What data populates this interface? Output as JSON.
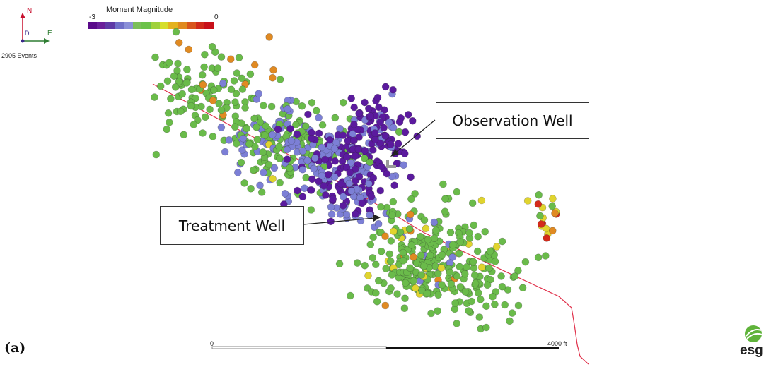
{
  "compass": {
    "north": "N",
    "east": "E",
    "down": "D"
  },
  "events_label": "2905 Events",
  "color_scale": {
    "title": "Moment Magnitude",
    "min_label": "-3",
    "max_label": "0",
    "colors": [
      "#5a0a8a",
      "#6a1f9a",
      "#5e3aa6",
      "#6f6fc8",
      "#8a8fd8",
      "#7bbf5a",
      "#6cc24a",
      "#9fd13c",
      "#d6de2a",
      "#e4b21e",
      "#e08a1e",
      "#d8551c",
      "#d02a1a",
      "#c8101a"
    ]
  },
  "callouts": {
    "observation": "Observation Well",
    "treatment": "Treatment Well"
  },
  "panel_label": "(a)",
  "scale_bar": {
    "start": "0",
    "end": "4000 ft"
  },
  "logo": "esg",
  "palette": {
    "purple": "#5b1a9e",
    "blue": "#7c7fd6",
    "green": "#6abb4a",
    "yellow": "#e0d42e",
    "orange": "#e08a22",
    "red": "#d42a1a",
    "well": "#e0304a"
  }
}
